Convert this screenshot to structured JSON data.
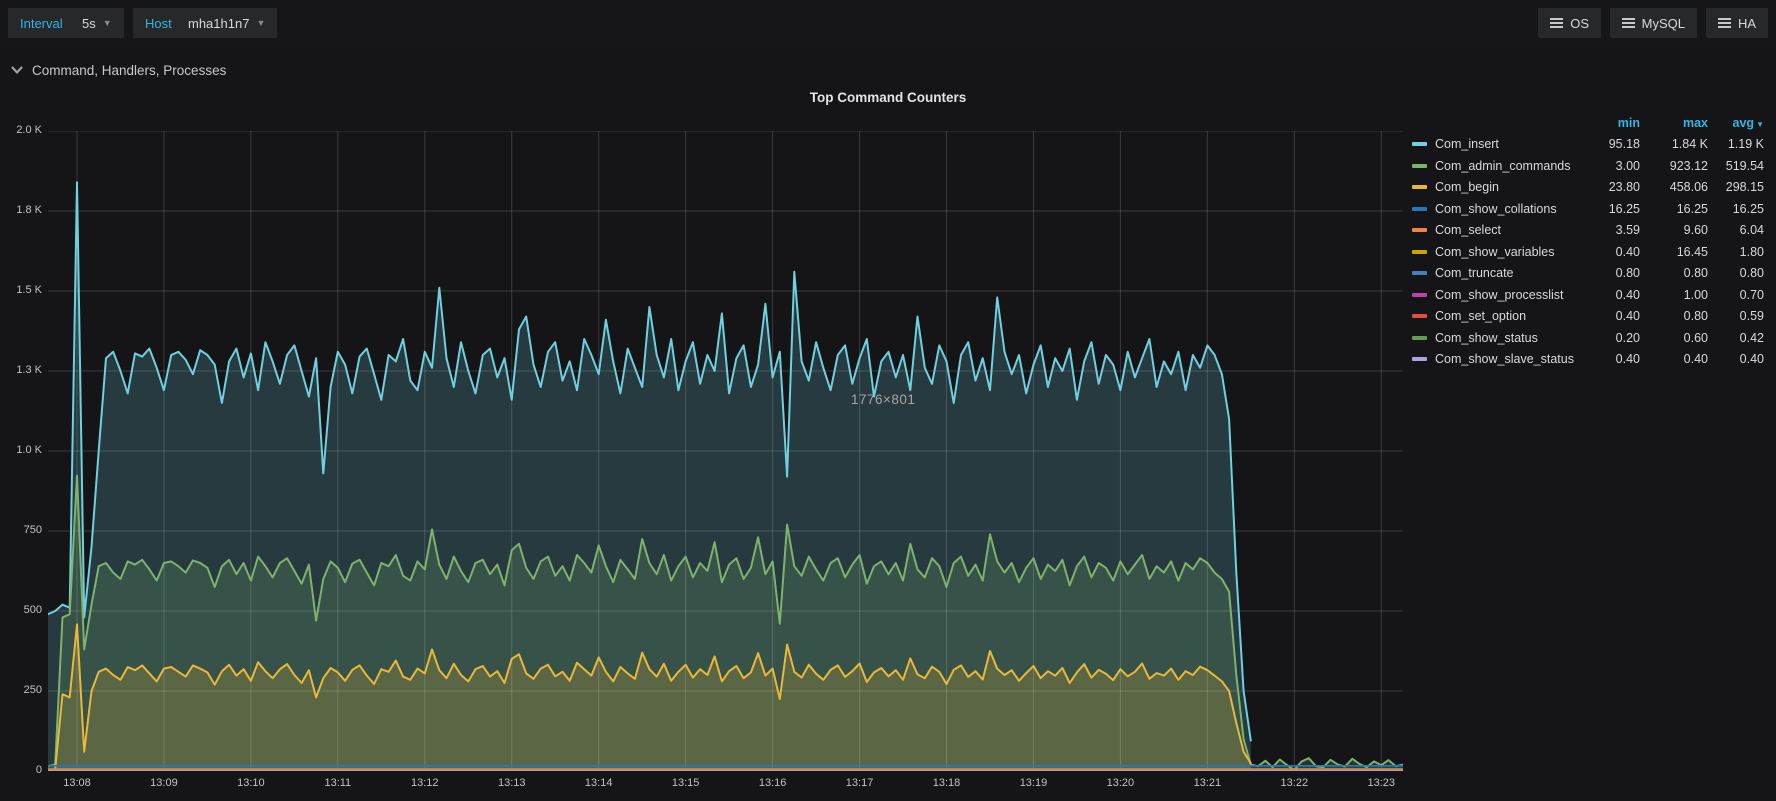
{
  "toolbar": {
    "interval_label": "Interval",
    "interval_value": "5s",
    "host_label": "Host",
    "host_value": "mha1h1n7",
    "menus": [
      {
        "label": "OS"
      },
      {
        "label": "MySQL"
      },
      {
        "label": "HA"
      }
    ]
  },
  "section": {
    "title": "Command, Handlers, Processes"
  },
  "panel": {
    "title": "Top Command Counters"
  },
  "watermark": "1776×801",
  "legend": {
    "columns": {
      "min": "min",
      "max": "max",
      "avg": "avg"
    },
    "sort_column": "avg",
    "series": [
      {
        "name": "Com_insert",
        "min": "95.18",
        "max": "1.84 K",
        "avg": "1.19 K"
      },
      {
        "name": "Com_admin_commands",
        "min": "3.00",
        "max": "923.12",
        "avg": "519.54"
      },
      {
        "name": "Com_begin",
        "min": "23.80",
        "max": "458.06",
        "avg": "298.15"
      },
      {
        "name": "Com_show_collations",
        "min": "16.25",
        "max": "16.25",
        "avg": "16.25"
      },
      {
        "name": "Com_select",
        "min": "3.59",
        "max": "9.60",
        "avg": "6.04"
      },
      {
        "name": "Com_show_variables",
        "min": "0.40",
        "max": "16.45",
        "avg": "1.80"
      },
      {
        "name": "Com_truncate",
        "min": "0.80",
        "max": "0.80",
        "avg": "0.80"
      },
      {
        "name": "Com_show_processlist",
        "min": "0.40",
        "max": "1.00",
        "avg": "0.70"
      },
      {
        "name": "Com_set_option",
        "min": "0.40",
        "max": "0.80",
        "avg": "0.59"
      },
      {
        "name": "Com_show_status",
        "min": "0.20",
        "max": "0.60",
        "avg": "0.42"
      },
      {
        "name": "Com_show_slave_status",
        "min": "0.40",
        "max": "0.40",
        "avg": "0.40"
      }
    ]
  },
  "chart_data": {
    "type": "area",
    "title": "Top Command Counters",
    "ylim": [
      0,
      2000
    ],
    "grid": true,
    "legend_position": "right-table",
    "fill_opacity": 0.2,
    "span_seconds": 935,
    "step_seconds": 5,
    "x_start": "13:07:40",
    "x_end": "13:23:15",
    "y_ticks": [
      {
        "v": 0,
        "label": "0"
      },
      {
        "v": 250,
        "label": "250"
      },
      {
        "v": 500,
        "label": "500"
      },
      {
        "v": 750,
        "label": "750"
      },
      {
        "v": 1000,
        "label": "1.0 K"
      },
      {
        "v": 1250,
        "label": "1.3 K"
      },
      {
        "v": 1500,
        "label": "1.5 K"
      },
      {
        "v": 1750,
        "label": "1.8 K"
      },
      {
        "v": 2000,
        "label": "2.0 K"
      }
    ],
    "x_ticks": [
      {
        "s": 20,
        "label": "13:08"
      },
      {
        "s": 80,
        "label": "13:09"
      },
      {
        "s": 140,
        "label": "13:10"
      },
      {
        "s": 200,
        "label": "13:11"
      },
      {
        "s": 260,
        "label": "13:12"
      },
      {
        "s": 320,
        "label": "13:13"
      },
      {
        "s": 380,
        "label": "13:14"
      },
      {
        "s": 440,
        "label": "13:15"
      },
      {
        "s": 500,
        "label": "13:16"
      },
      {
        "s": 560,
        "label": "13:17"
      },
      {
        "s": 620,
        "label": "13:18"
      },
      {
        "s": 680,
        "label": "13:19"
      },
      {
        "s": 740,
        "label": "13:20"
      },
      {
        "s": 800,
        "label": "13:21"
      },
      {
        "s": 860,
        "label": "13:22"
      },
      {
        "s": 920,
        "label": "13:23"
      }
    ],
    "series": [
      {
        "name": "Com_insert",
        "color": "#6ED0E0",
        "width": 2,
        "values": [
          490,
          500,
          520,
          510,
          1840,
          480,
          700,
          1000,
          1290,
          1310,
          1250,
          1180,
          1305,
          1295,
          1320,
          1260,
          1190,
          1300,
          1310,
          1285,
          1240,
          1315,
          1300,
          1270,
          1150,
          1280,
          1320,
          1230,
          1305,
          1190,
          1340,
          1280,
          1210,
          1300,
          1330,
          1250,
          1170,
          1290,
          930,
          1200,
          1310,
          1270,
          1180,
          1295,
          1320,
          1240,
          1160,
          1300,
          1280,
          1350,
          1220,
          1190,
          1310,
          1260,
          1510,
          1290,
          1200,
          1340,
          1250,
          1180,
          1300,
          1320,
          1230,
          1290,
          1160,
          1380,
          1420,
          1270,
          1200,
          1310,
          1340,
          1220,
          1280,
          1190,
          1350,
          1300,
          1240,
          1410,
          1280,
          1180,
          1320,
          1260,
          1200,
          1450,
          1300,
          1230,
          1350,
          1190,
          1280,
          1340,
          1210,
          1300,
          1250,
          1430,
          1180,
          1290,
          1330,
          1200,
          1270,
          1460,
          1230,
          1310,
          920,
          1560,
          1280,
          1220,
          1340,
          1260,
          1190,
          1300,
          1330,
          1210,
          1290,
          1350,
          1170,
          1280,
          1310,
          1230,
          1300,
          1190,
          1420,
          1260,
          1210,
          1330,
          1280,
          1150,
          1300,
          1340,
          1220,
          1290,
          1190,
          1480,
          1310,
          1240,
          1300,
          1180,
          1270,
          1330,
          1200,
          1290,
          1250,
          1320,
          1160,
          1280,
          1340,
          1210,
          1300,
          1270,
          1190,
          1310,
          1230,
          1290,
          1350,
          1200,
          1280,
          1240,
          1310,
          1190,
          1300,
          1260,
          1330,
          1300,
          1240,
          1100,
          620,
          250,
          95,
          null,
          null,
          null,
          null,
          null,
          null,
          null,
          null,
          null,
          null,
          null,
          null,
          null,
          null,
          null,
          null,
          null,
          null,
          null,
          null,
          null
        ]
      },
      {
        "name": "Com_admin_commands",
        "color": "#7EB26D",
        "width": 2,
        "values": [
          15,
          20,
          480,
          490,
          923,
          380,
          520,
          640,
          650,
          620,
          600,
          655,
          645,
          660,
          630,
          595,
          650,
          655,
          640,
          620,
          658,
          650,
          635,
          575,
          640,
          660,
          615,
          650,
          595,
          670,
          640,
          605,
          650,
          665,
          625,
          585,
          645,
          470,
          600,
          655,
          635,
          590,
          648,
          660,
          620,
          580,
          650,
          640,
          675,
          610,
          595,
          655,
          630,
          755,
          645,
          600,
          670,
          625,
          590,
          650,
          660,
          615,
          645,
          580,
          690,
          710,
          635,
          600,
          655,
          670,
          610,
          640,
          595,
          675,
          650,
          620,
          705,
          640,
          590,
          660,
          630,
          600,
          725,
          650,
          615,
          675,
          595,
          640,
          670,
          605,
          650,
          625,
          715,
          590,
          645,
          665,
          600,
          635,
          730,
          615,
          655,
          460,
          770,
          640,
          610,
          670,
          630,
          595,
          650,
          665,
          605,
          645,
          675,
          585,
          640,
          655,
          615,
          650,
          595,
          710,
          630,
          605,
          665,
          640,
          575,
          650,
          670,
          610,
          645,
          595,
          740,
          655,
          620,
          650,
          590,
          635,
          665,
          600,
          645,
          625,
          660,
          580,
          640,
          670,
          605,
          650,
          635,
          595,
          655,
          615,
          645,
          675,
          600,
          640,
          620,
          655,
          595,
          650,
          630,
          665,
          650,
          620,
          600,
          560,
          300,
          100,
          20,
          15,
          32,
          12,
          36,
          18,
          3,
          30,
          40,
          15,
          12,
          35,
          20,
          14,
          38,
          22,
          12,
          30,
          18,
          34,
          15,
          20
        ]
      },
      {
        "name": "Com_begin",
        "color": "#EAB839",
        "width": 2,
        "values": [
          4,
          5,
          240,
          230,
          458,
          60,
          250,
          310,
          320,
          300,
          285,
          325,
          315,
          330,
          305,
          280,
          320,
          325,
          310,
          295,
          330,
          320,
          308,
          270,
          312,
          332,
          298,
          318,
          282,
          340,
          312,
          290,
          318,
          334,
          300,
          275,
          315,
          230,
          290,
          322,
          308,
          282,
          316,
          330,
          298,
          272,
          318,
          310,
          345,
          295,
          285,
          320,
          305,
          380,
          315,
          290,
          335,
          300,
          280,
          318,
          328,
          295,
          312,
          275,
          350,
          365,
          305,
          288,
          320,
          332,
          296,
          310,
          282,
          338,
          318,
          298,
          355,
          310,
          280,
          325,
          305,
          288,
          370,
          318,
          295,
          335,
          282,
          310,
          332,
          292,
          318,
          300,
          358,
          280,
          312,
          328,
          290,
          308,
          368,
          298,
          320,
          225,
          395,
          310,
          292,
          332,
          304,
          285,
          316,
          330,
          294,
          312,
          336,
          278,
          308,
          322,
          296,
          315,
          285,
          352,
          302,
          290,
          326,
          310,
          272,
          316,
          330,
          294,
          312,
          286,
          375,
          320,
          300,
          315,
          282,
          306,
          328,
          290,
          312,
          298,
          322,
          275,
          308,
          334,
          292,
          316,
          304,
          284,
          318,
          296,
          310,
          336,
          288,
          306,
          298,
          320,
          285,
          312,
          300,
          326,
          315,
          298,
          280,
          250,
          150,
          60,
          24,
          null,
          null,
          null,
          null,
          null,
          null,
          null,
          null,
          null,
          null,
          null,
          null,
          null,
          null,
          null,
          null,
          null,
          null,
          null,
          null,
          null
        ]
      },
      {
        "name": "Com_show_collations",
        "color": "#1F78C1",
        "width": 1.6,
        "const": 16.25
      },
      {
        "name": "Com_select",
        "color": "#EF843C",
        "width": 1.6,
        "const": 6.0
      },
      {
        "name": "Com_show_variables",
        "color": "#CCA300",
        "width": 1.6,
        "const": 1.8
      },
      {
        "name": "Com_truncate",
        "color": "#447EBC",
        "width": 1.6,
        "const": 0.8
      },
      {
        "name": "Com_show_processlist",
        "color": "#BA43A9",
        "width": 1.6,
        "const": 0.7
      },
      {
        "name": "Com_set_option",
        "color": "#E24D42",
        "width": 1.6,
        "const": 0.59
      },
      {
        "name": "Com_show_status",
        "color": "#629E51",
        "width": 1.6,
        "const": 0.42
      },
      {
        "name": "Com_show_slave_status",
        "color": "#AEA2E0",
        "width": 1.6,
        "const": 0.4
      }
    ]
  }
}
